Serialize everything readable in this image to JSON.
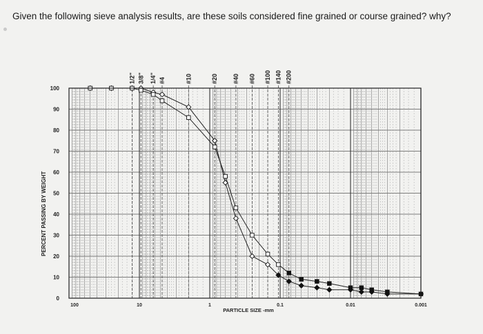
{
  "question": {
    "text": "Given the following sieve analysis results, are these soils considered fine grained or course grained? why?"
  },
  "chart_data": {
    "type": "line",
    "xscale": "log",
    "xreversed": true,
    "xlim": [
      100,
      0.001
    ],
    "ylim": [
      0,
      100
    ],
    "grid": true,
    "xlabel": "PARTICLE SIZE -mm",
    "ylabel": "PERCENT PASSING BY WEIGHT",
    "x_ticks": [
      {
        "value": 100,
        "label": "100"
      },
      {
        "value": 10,
        "label": "10"
      },
      {
        "value": 1,
        "label": "1"
      },
      {
        "value": 0.1,
        "label": "0.1"
      },
      {
        "value": 0.01,
        "label": "0.01"
      },
      {
        "value": 0.001,
        "label": "0.001"
      }
    ],
    "y_ticks": [
      0,
      10,
      20,
      30,
      40,
      50,
      60,
      70,
      80,
      90,
      100
    ],
    "sieves": [
      {
        "label": "1/2\"",
        "size": 12.7
      },
      {
        "label": "1/4\"",
        "size": 6.35
      },
      {
        "label": "3/8\"",
        "size": 9.5
      },
      {
        "label": "#4",
        "size": 4.75
      },
      {
        "label": "#10",
        "size": 2.0
      },
      {
        "label": "#20",
        "size": 0.85
      },
      {
        "label": "#40",
        "size": 0.425
      },
      {
        "label": "#60",
        "size": 0.25
      },
      {
        "label": "#100",
        "size": 0.15
      },
      {
        "label": "#140",
        "size": 0.106
      },
      {
        "label": "#200",
        "size": 0.075
      }
    ],
    "series": [
      {
        "marker": "diamond",
        "color": "#222222",
        "x": [
          50,
          25,
          12.7,
          9.5,
          6.35,
          4.75,
          2.0,
          0.85,
          0.6,
          0.425,
          0.25,
          0.15,
          0.106,
          0.075,
          0.05,
          0.03,
          0.02,
          0.01,
          0.007,
          0.005,
          0.003,
          0.001
        ],
        "y": [
          100,
          100,
          100,
          100,
          98,
          97,
          91,
          75,
          55,
          38,
          20,
          16,
          11,
          8,
          6,
          5,
          4,
          4,
          3,
          3,
          2,
          2
        ]
      },
      {
        "marker": "square",
        "color": "#222222",
        "x": [
          50,
          25,
          12.7,
          9.5,
          6.35,
          4.75,
          2.0,
          0.85,
          0.6,
          0.425,
          0.25,
          0.15,
          0.106,
          0.075,
          0.05,
          0.03,
          0.02,
          0.01,
          0.007,
          0.005,
          0.003,
          0.001
        ],
        "y": [
          100,
          100,
          100,
          99,
          97,
          94,
          86,
          72,
          58,
          43,
          30,
          21,
          16,
          12,
          9,
          8,
          7,
          5,
          5,
          4,
          3,
          2
        ]
      }
    ]
  }
}
